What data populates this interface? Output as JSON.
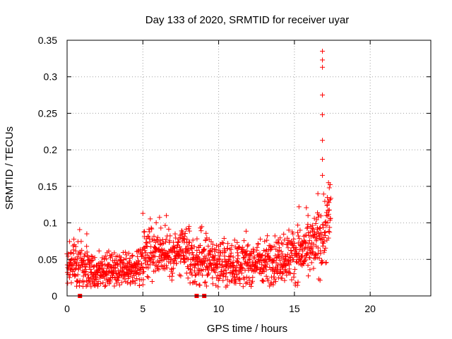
{
  "chart_data": {
    "type": "scatter",
    "title": "Day 133 of 2020, SRMTID for receiver uyar",
    "xlabel": "GPS time / hours",
    "ylabel": "SRMTID / TECUs",
    "xlim": [
      0,
      24
    ],
    "ylim": [
      0,
      0.35
    ],
    "xticks": [
      0,
      5,
      10,
      15,
      20
    ],
    "yticks": [
      0,
      0.05,
      0.1,
      0.15,
      0.2,
      0.25,
      0.3,
      0.35
    ],
    "xtick_labels": [
      "0",
      "5",
      "10",
      "15",
      "20"
    ],
    "ytick_labels": [
      "0",
      "0.05",
      "0.1",
      "0.15",
      "0.2",
      "0.25",
      "0.3",
      "0.35"
    ],
    "grid": true,
    "marker": "+",
    "series": [
      {
        "name": "SRMTID",
        "color": "#ff0000",
        "envelope": [
          {
            "x": 0.0,
            "mean": 0.04,
            "spread": 0.012
          },
          {
            "x": 0.5,
            "mean": 0.048,
            "spread": 0.016
          },
          {
            "x": 1.0,
            "mean": 0.042,
            "spread": 0.015
          },
          {
            "x": 1.5,
            "mean": 0.036,
            "spread": 0.014
          },
          {
            "x": 2.0,
            "mean": 0.032,
            "spread": 0.012
          },
          {
            "x": 3.0,
            "mean": 0.034,
            "spread": 0.012
          },
          {
            "x": 4.0,
            "mean": 0.032,
            "spread": 0.012
          },
          {
            "x": 4.8,
            "mean": 0.04,
            "spread": 0.014
          },
          {
            "x": 5.2,
            "mean": 0.065,
            "spread": 0.02
          },
          {
            "x": 6.0,
            "mean": 0.062,
            "spread": 0.018
          },
          {
            "x": 7.0,
            "mean": 0.058,
            "spread": 0.018
          },
          {
            "x": 8.0,
            "mean": 0.058,
            "spread": 0.018
          },
          {
            "x": 8.5,
            "mean": 0.045,
            "spread": 0.016
          },
          {
            "x": 9.0,
            "mean": 0.05,
            "spread": 0.018
          },
          {
            "x": 10.0,
            "mean": 0.044,
            "spread": 0.015
          },
          {
            "x": 11.0,
            "mean": 0.044,
            "spread": 0.015
          },
          {
            "x": 12.0,
            "mean": 0.045,
            "spread": 0.015
          },
          {
            "x": 13.0,
            "mean": 0.048,
            "spread": 0.015
          },
          {
            "x": 14.0,
            "mean": 0.052,
            "spread": 0.016
          },
          {
            "x": 15.0,
            "mean": 0.058,
            "spread": 0.018
          },
          {
            "x": 16.0,
            "mean": 0.062,
            "spread": 0.02
          },
          {
            "x": 16.6,
            "mean": 0.075,
            "spread": 0.022
          },
          {
            "x": 17.0,
            "mean": 0.09,
            "spread": 0.025
          },
          {
            "x": 17.4,
            "mean": 0.11,
            "spread": 0.025
          }
        ],
        "outliers": [
          {
            "x": 16.85,
            "y": 0.335
          },
          {
            "x": 16.85,
            "y": 0.323
          },
          {
            "x": 16.85,
            "y": 0.313
          },
          {
            "x": 16.85,
            "y": 0.275
          },
          {
            "x": 16.85,
            "y": 0.248
          },
          {
            "x": 16.85,
            "y": 0.213
          },
          {
            "x": 16.85,
            "y": 0.187
          },
          {
            "x": 16.85,
            "y": 0.165
          },
          {
            "x": 16.55,
            "y": 0.14
          },
          {
            "x": 17.25,
            "y": 0.155
          },
          {
            "x": 17.3,
            "y": 0.148
          },
          {
            "x": 15.3,
            "y": 0.122
          },
          {
            "x": 5.0,
            "y": 0.113
          },
          {
            "x": 6.55,
            "y": 0.11
          },
          {
            "x": 1.3,
            "y": 0.085
          },
          {
            "x": 8.8,
            "y": 0.093
          }
        ]
      }
    ],
    "zero_markers": [
      {
        "x": 0.85,
        "y": 0
      },
      {
        "x": 8.55,
        "y": 0
      },
      {
        "x": 9.05,
        "y": 0
      }
    ]
  }
}
